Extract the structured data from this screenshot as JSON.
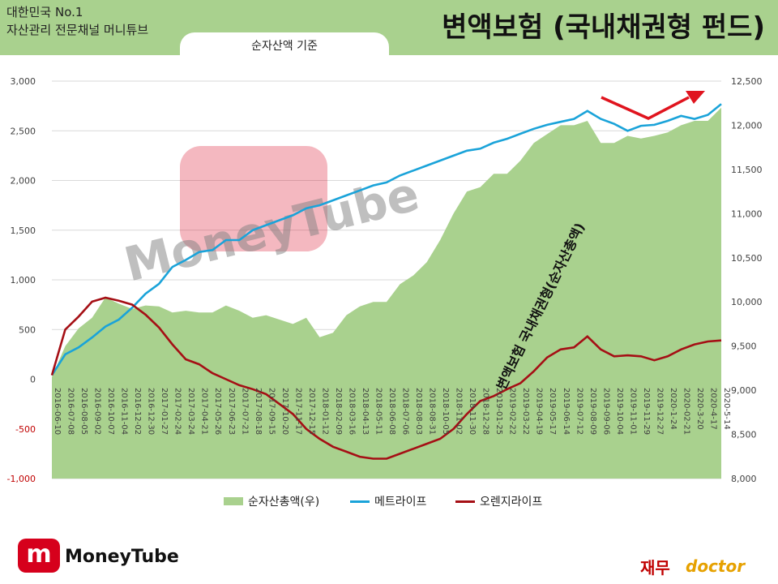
{
  "header": {
    "brand_line1": "대한민국 No.1",
    "brand_line2": "자산관리 전문채널 머니튜브",
    "title": "변액보험 (국내채권형 펀드)",
    "subtitle": "순자산액 기준"
  },
  "watermark": {
    "text": "MoneyTube"
  },
  "annotation": {
    "text": "변액보험 국내채권형(순자산총액)"
  },
  "footer": {
    "left_logo_text": "MoneyTube",
    "left_logo_mark": "m",
    "right_logo_korean": "재무",
    "right_logo_english": "doctor"
  },
  "colors": {
    "area": "#a9d18e",
    "metlife": "#1aa3d9",
    "orange": "#a50f15",
    "arrow": "#e0141e",
    "header": "#a9d18e"
  },
  "chart_data": {
    "type": "line",
    "x_tick_labels": [
      "2016-06-10",
      "2016-07-08",
      "2016-08-05",
      "2016-09-02",
      "2016-10-07",
      "2016-11-04",
      "2016-12-02",
      "2016-12-30",
      "2017-01-27",
      "2017-02-24",
      "2017-03-24",
      "2017-04-21",
      "2017-05-26",
      "2017-06-23",
      "2017-07-21",
      "2017-08-18",
      "2017-09-15",
      "2017-10-20",
      "2017-11-17",
      "2017-12-15",
      "2018-01-12",
      "2018-02-09",
      "2018-03-16",
      "2018-04-13",
      "2018-05-11",
      "2018-06-08",
      "2018-07-06",
      "2018-08-03",
      "2018-08-31",
      "2018-10-05",
      "2018-11-02",
      "2018-11-30",
      "2018-12-28",
      "2019-01-25",
      "2019-02-22",
      "2019-03-22",
      "2019-04-19",
      "2019-05-17",
      "2019-06-14",
      "2019-07-12",
      "2019-08-09",
      "2019-09-06",
      "2019-10-04",
      "2019-11-01",
      "2019-11-29",
      "2019-12-27",
      "2020-1-24",
      "2020-02-21",
      "2020-3-20",
      "2020-4-17",
      "2020-5-14"
    ],
    "y_left": {
      "ticks": [
        -1000,
        -500,
        0,
        500,
        1000,
        1500,
        2000,
        2500,
        3000
      ],
      "tick_labels": [
        "-1,000",
        "-500",
        "0",
        "500",
        "1,000",
        "1,500",
        "2,000",
        "2,500",
        "3,000"
      ],
      "range": [
        -1000,
        3000
      ]
    },
    "y_right": {
      "ticks": [
        8000,
        8500,
        9000,
        9500,
        10000,
        10500,
        11000,
        11500,
        12000,
        12500
      ],
      "tick_labels": [
        "8,000",
        "8,500",
        "9,000",
        "9,500",
        "10,000",
        "10,500",
        "11,000",
        "11,500",
        "12,000",
        "12,500"
      ],
      "range": [
        8000,
        12500
      ]
    },
    "legend": {
      "placement": "bottom"
    },
    "series": [
      {
        "name": "순자산총액(우)",
        "kind": "area",
        "axis": "right",
        "values": [
          9150,
          9500,
          9700,
          9820,
          10050,
          9980,
          9920,
          9960,
          9950,
          9880,
          9900,
          9880,
          9880,
          9960,
          9900,
          9820,
          9850,
          9800,
          9750,
          9820,
          9600,
          9650,
          9850,
          9950,
          10000,
          10000,
          10200,
          10300,
          10450,
          10700,
          11000,
          11250,
          11300,
          11450,
          11450,
          11600,
          11800,
          11900,
          12000,
          12000,
          12050,
          11800,
          11800,
          11880,
          11850,
          11880,
          11920,
          12000,
          12050,
          12050,
          12200
        ]
      },
      {
        "name": "메트라이프",
        "kind": "line",
        "axis": "left",
        "values": [
          40,
          250,
          320,
          420,
          530,
          600,
          720,
          860,
          960,
          1130,
          1200,
          1280,
          1300,
          1400,
          1400,
          1500,
          1550,
          1600,
          1650,
          1720,
          1750,
          1800,
          1850,
          1900,
          1950,
          1980,
          2050,
          2100,
          2150,
          2200,
          2250,
          2300,
          2320,
          2380,
          2420,
          2470,
          2520,
          2560,
          2590,
          2620,
          2700,
          2620,
          2570,
          2500,
          2550,
          2560,
          2600,
          2650,
          2620,
          2660,
          2770
        ]
      },
      {
        "name": "오렌지라이프",
        "kind": "line",
        "axis": "left",
        "values": [
          40,
          500,
          630,
          780,
          820,
          790,
          750,
          650,
          520,
          350,
          200,
          150,
          60,
          0,
          -60,
          -100,
          -150,
          -250,
          -350,
          -500,
          -600,
          -680,
          -730,
          -780,
          -800,
          -800,
          -750,
          -700,
          -650,
          -600,
          -500,
          -350,
          -220,
          -170,
          -100,
          -40,
          80,
          220,
          300,
          320,
          430,
          300,
          230,
          240,
          230,
          190,
          230,
          300,
          350,
          380,
          390
        ]
      }
    ]
  }
}
